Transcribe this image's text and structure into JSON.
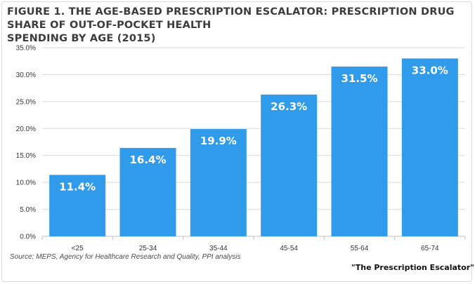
{
  "header": {
    "title_line1": "FIGURE 1. THE AGE-BASED PRESCRIPTION ESCALATOR: PRESCRIPTION DRUG SHARE OF OUT-OF-POCKET HEALTH",
    "title_line2": "SPENDING BY AGE (2015)"
  },
  "footer": {
    "source": "Source: MEPS, Agency for Healthcare Research and Quality, PPI analysis",
    "tagline": "\"The Prescription Escalator\""
  },
  "colors": {
    "bar": "#2f9bea",
    "grid": "#d9d9d9",
    "axis": "#bfbfbf"
  },
  "chart_data": {
    "type": "bar",
    "title": "FIGURE 1. THE AGE-BASED PRESCRIPTION ESCALATOR: PRESCRIPTION DRUG SHARE OF OUT-OF-POCKET HEALTH SPENDING BY AGE (2015)",
    "categories": [
      "<25",
      "25-34",
      "35-44",
      "45-54",
      "55-64",
      "65-74"
    ],
    "values": [
      11.4,
      16.4,
      19.9,
      26.3,
      31.5,
      33.0
    ],
    "data_labels": [
      "11.4%",
      "16.4%",
      "19.9%",
      "26.3%",
      "31.5%",
      "33.0%"
    ],
    "y_ticks": [
      "0.0%",
      "5.0%",
      "10.0%",
      "15.0%",
      "20.0%",
      "25.0%",
      "30.0%",
      "35.0%"
    ],
    "ylim": [
      0,
      35
    ],
    "grid": true,
    "xlabel": "",
    "ylabel": ""
  }
}
